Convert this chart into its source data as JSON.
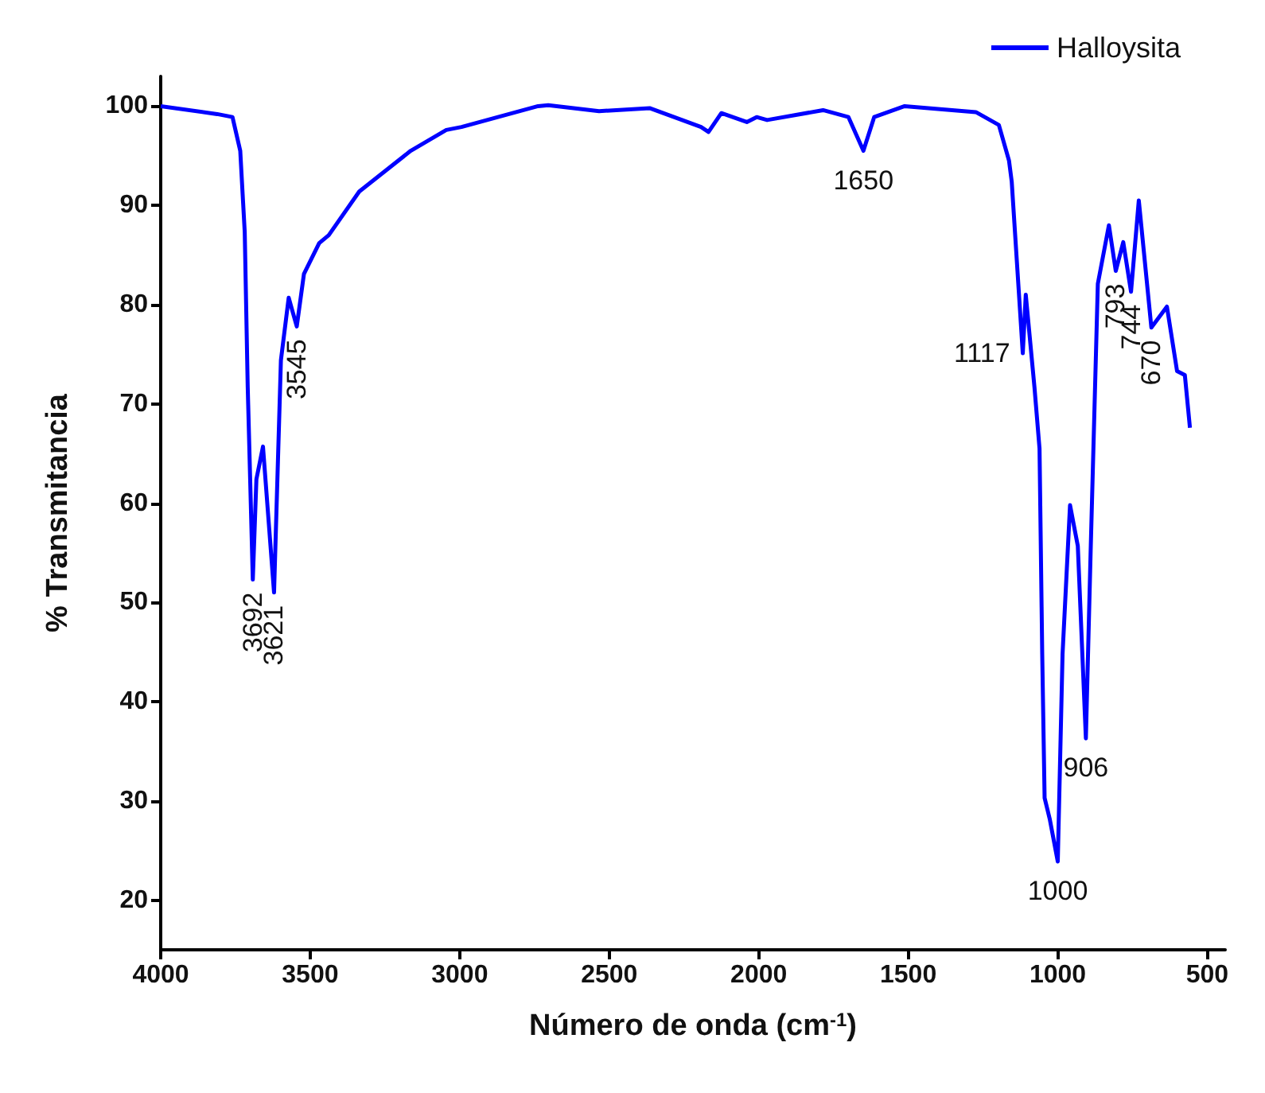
{
  "chart_data": {
    "type": "line",
    "xlabel": "Número de onda (cm$^{-1}$)",
    "ylabel": "% Transmitancia",
    "xlim": [
      4000,
      440
    ],
    "xticks": [
      4000,
      3500,
      3000,
      2500,
      2000,
      1500,
      1000,
      500
    ],
    "ylim": [
      15,
      103
    ],
    "yticks": [
      20,
      30,
      40,
      50,
      60,
      70,
      80,
      90,
      100
    ],
    "grid": false,
    "legend": "top right",
    "marker": "none",
    "line_style": "solid",
    "series": [
      {
        "name": "Halloysita",
        "color": "#0000ff",
        "x": [
          4000,
          3811,
          3760,
          3734,
          3719,
          3709,
          3692,
          3680,
          3658,
          3621,
          3598,
          3572,
          3545,
          3521,
          3470,
          3438,
          3336,
          3164,
          3045,
          2994,
          2738,
          2704,
          2534,
          2365,
          2193,
          2168,
          2125,
          2040,
          2007,
          1972,
          1785,
          1700,
          1650,
          1614,
          1512,
          1274,
          1197,
          1163,
          1154,
          1117,
          1107,
          1078,
          1061,
          1052,
          1044,
          1027,
          1000,
          984,
          959,
          933,
          906,
          890,
          866,
          829,
          806,
          781,
          755,
          729,
          687,
          635,
          601,
          575,
          558
        ],
        "values": [
          100,
          99.2,
          98.9,
          95.5,
          87.3,
          71.7,
          52.3,
          62.4,
          65.7,
          51,
          74.4,
          80.7,
          77.8,
          83.1,
          86.2,
          87,
          91.4,
          95.5,
          97.6,
          97.9,
          100,
          100.1,
          99.5,
          99.8,
          97.9,
          97.4,
          99.3,
          98.4,
          98.9,
          98.6,
          99.6,
          98.9,
          95.5,
          98.9,
          100,
          99.4,
          98.1,
          94.5,
          92.4,
          75.1,
          81,
          71.7,
          65.5,
          44.8,
          30.3,
          28.2,
          23.9,
          44.8,
          59.8,
          55.7,
          36.3,
          55.2,
          82.1,
          88,
          83.4,
          86.3,
          81.3,
          90.5,
          77.7,
          79.8,
          73.3,
          72.9,
          67.6
        ]
      }
    ],
    "annotations": [
      {
        "text": "3692",
        "x": 3692,
        "y": 52.3
      },
      {
        "text": "3621",
        "x": 3621,
        "y": 51
      },
      {
        "text": "3545",
        "x": 3545,
        "y": 77.8
      },
      {
        "text": "1650",
        "x": 1650,
        "y": 95.5
      },
      {
        "text": "1117",
        "x": 1117,
        "y": 75.1
      },
      {
        "text": "1000",
        "x": 1000,
        "y": 23.9
      },
      {
        "text": "906",
        "x": 906,
        "y": 36.3
      },
      {
        "text": "793",
        "x": 806,
        "y": 83.4
      },
      {
        "text": "744",
        "x": 755,
        "y": 81.3
      },
      {
        "text": "670",
        "x": 687,
        "y": 77.7
      }
    ]
  }
}
